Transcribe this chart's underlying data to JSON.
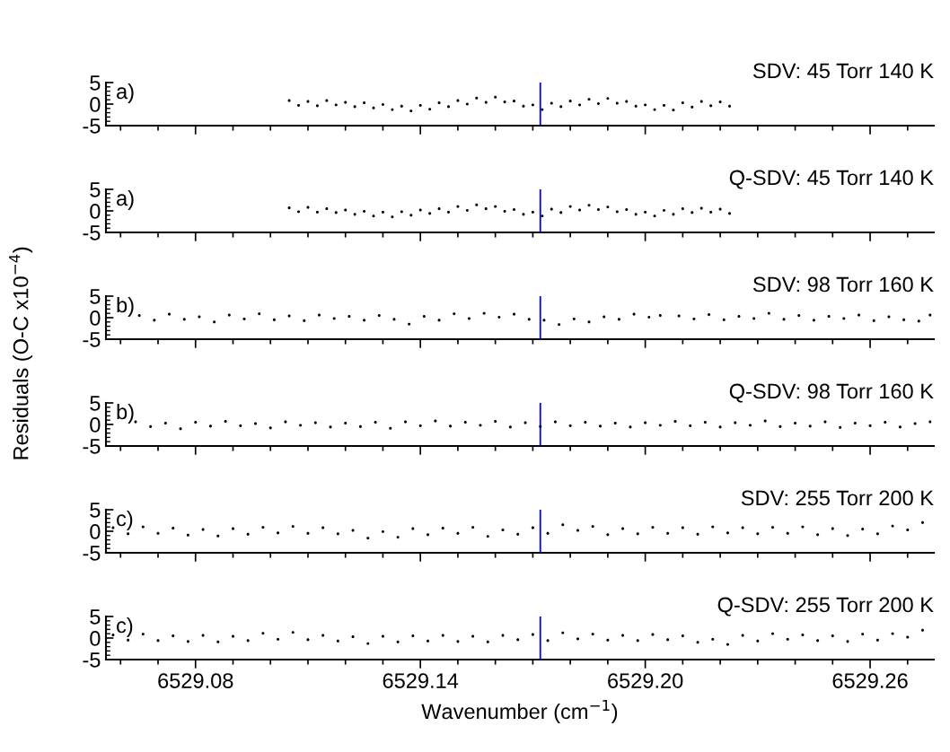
{
  "chart_data": [
    {
      "type": "scatter",
      "title": "SDV: 45 Torr 140 K",
      "ylabel": "Residuals (O-C x10$^{−4}$)",
      "annotations": [
        "a)"
      ],
      "tick_labels": "y",
      "xlim": [
        6529.0561,
        6529.277
      ],
      "xticks": [
        6529.08,
        6529.14,
        6529.2,
        6529.26
      ],
      "ylim": [
        -5,
        5
      ],
      "yticks": [
        -5,
        0,
        5
      ],
      "ref_lines": [
        {
          "axis": "x",
          "value": 6529.172,
          "color": "#0000ff"
        }
      ],
      "series": [
        {
          "color": "#000000",
          "x": [
            6529.105,
            6529.1075,
            6529.11,
            6529.1125,
            6529.115,
            6529.1175,
            6529.12,
            6529.1225,
            6529.125,
            6529.1275,
            6529.13,
            6529.1325,
            6529.135,
            6529.1375,
            6529.14,
            6529.1425,
            6529.145,
            6529.1475,
            6529.15,
            6529.1525,
            6529.155,
            6529.1575,
            6529.16,
            6529.1625,
            6529.165,
            6529.1675,
            6529.17,
            6529.1725,
            6529.175,
            6529.1775,
            6529.18,
            6529.1825,
            6529.185,
            6529.1875,
            6529.19,
            6529.1925,
            6529.195,
            6529.1975,
            6529.2,
            6529.2025,
            6529.205,
            6529.2075,
            6529.21,
            6529.2125,
            6529.215,
            6529.2175,
            6529.22,
            6529.2225
          ],
          "values": [
            0.8,
            -0.3,
            0.6,
            -0.4,
            0.8,
            -0.2,
            0.4,
            -0.6,
            0.3,
            -0.9,
            -0.1,
            -1.3,
            -0.5,
            -1.6,
            -0.3,
            -1.2,
            0.3,
            -0.6,
            0.8,
            0,
            1.4,
            0.4,
            1.6,
            0.5,
            0.7,
            -0.5,
            -0.2,
            -1.3,
            0.2,
            -0.6,
            0.7,
            -0.2,
            1.1,
            0.1,
            1.3,
            0.2,
            0.6,
            -0.5,
            -0.2,
            -1.3,
            -0.3,
            -1.4,
            0.3,
            -0.7,
            0.6,
            -0.4,
            0.5,
            -0.5
          ]
        }
      ]
    },
    {
      "type": "scatter",
      "title": "Q-SDV: 45 Torr 140 K",
      "annotations": [
        "a)"
      ],
      "tick_labels": "y",
      "xlim": [
        6529.0561,
        6529.277
      ],
      "xticks": [
        6529.08,
        6529.14,
        6529.2,
        6529.26
      ],
      "ylim": [
        -5,
        5
      ],
      "yticks": [
        -5,
        0,
        5
      ],
      "ref_lines": [
        {
          "axis": "x",
          "value": 6529.172,
          "color": "#0000ff"
        }
      ],
      "series": [
        {
          "color": "#000000",
          "x": [
            6529.105,
            6529.1075,
            6529.11,
            6529.1125,
            6529.115,
            6529.1175,
            6529.12,
            6529.1225,
            6529.125,
            6529.1275,
            6529.13,
            6529.1325,
            6529.135,
            6529.1375,
            6529.14,
            6529.1425,
            6529.145,
            6529.1475,
            6529.15,
            6529.1525,
            6529.155,
            6529.1575,
            6529.16,
            6529.1625,
            6529.165,
            6529.1675,
            6529.17,
            6529.1725,
            6529.175,
            6529.1775,
            6529.18,
            6529.1825,
            6529.185,
            6529.1875,
            6529.19,
            6529.1925,
            6529.195,
            6529.1975,
            6529.2,
            6529.2025,
            6529.205,
            6529.2075,
            6529.21,
            6529.2125,
            6529.215,
            6529.2175,
            6529.22,
            6529.2225
          ],
          "values": [
            0.7,
            -0.2,
            0.8,
            -0.3,
            0.5,
            -0.4,
            0.2,
            -0.8,
            -0.1,
            -1.2,
            -0.3,
            -1.4,
            -0.2,
            -1.0,
            0.2,
            -0.6,
            0.5,
            -0.3,
            1.0,
            0.1,
            1.4,
            0.5,
            1.0,
            -0.1,
            0.3,
            -0.8,
            -0.3,
            -1.2,
            0.4,
            -0.4,
            1.0,
            0.2,
            1.3,
            0.3,
            0.9,
            -0.2,
            0.3,
            -0.8,
            -0.3,
            -1.2,
            0.1,
            -0.8,
            0.5,
            -0.4,
            0.6,
            -0.3,
            0.4,
            -0.6
          ]
        }
      ]
    },
    {
      "type": "scatter",
      "title": "SDV: 98 Torr 160 K",
      "annotations": [
        "b)"
      ],
      "tick_labels": "y",
      "xlim": [
        6529.0561,
        6529.277
      ],
      "xticks": [
        6529.08,
        6529.14,
        6529.2,
        6529.26
      ],
      "ylim": [
        -5,
        5
      ],
      "yticks": [
        -5,
        0,
        5
      ],
      "ref_lines": [
        {
          "axis": "x",
          "value": 6529.172,
          "color": "#0000ff"
        }
      ],
      "series": [
        {
          "color": "#000000",
          "x": [
            6529.065,
            6529.069,
            6529.073,
            6529.077,
            6529.081,
            6529.085,
            6529.089,
            6529.093,
            6529.097,
            6529.101,
            6529.105,
            6529.109,
            6529.113,
            6529.117,
            6529.121,
            6529.125,
            6529.129,
            6529.133,
            6529.137,
            6529.141,
            6529.145,
            6529.149,
            6529.153,
            6529.157,
            6529.161,
            6529.165,
            6529.169,
            6529.173,
            6529.177,
            6529.181,
            6529.185,
            6529.189,
            6529.193,
            6529.197,
            6529.201,
            6529.204,
            6529.209,
            6529.213,
            6529.217,
            6529.221,
            6529.225,
            6529.229,
            6529.233,
            6529.237,
            6529.241,
            6529.245,
            6529.249,
            6529.253,
            6529.257,
            6529.261,
            6529.265,
            6529.269,
            6529.273,
            6529.276
          ],
          "values": [
            0.5,
            -0.6,
            0.8,
            -0.4,
            0.2,
            -1.0,
            0.6,
            -0.3,
            0.9,
            -0.5,
            0.4,
            -0.7,
            0.6,
            -0.2,
            0.3,
            -0.6,
            0.5,
            -0.4,
            -1.5,
            0.3,
            -0.6,
            0.9,
            -0.2,
            1.0,
            0.1,
            0.8,
            -0.4,
            -0.6,
            -1.6,
            -0.3,
            -1.0,
            0.2,
            -0.4,
            0.8,
            0.1,
            0.5,
            0.4,
            -0.3,
            0.7,
            -0.5,
            0.3,
            -0.2,
            1.0,
            -0.4,
            0.5,
            -0.6,
            0.3,
            -0.2,
            0.6,
            -0.7,
            0.2,
            -0.5,
            -0.8,
            0.6
          ]
        }
      ]
    },
    {
      "type": "scatter",
      "title": "Q-SDV: 98 Torr 160 K",
      "annotations": [
        "b)"
      ],
      "tick_labels": "y",
      "xlim": [
        6529.0561,
        6529.277
      ],
      "xticks": [
        6529.08,
        6529.14,
        6529.2,
        6529.26
      ],
      "ylim": [
        -5,
        5
      ],
      "yticks": [
        -5,
        0,
        5
      ],
      "ref_lines": [
        {
          "axis": "x",
          "value": 6529.172,
          "color": "#0000ff"
        }
      ],
      "series": [
        {
          "color": "#000000",
          "x": [
            6529.064,
            6529.068,
            6529.072,
            6529.076,
            6529.08,
            6529.084,
            6529.088,
            6529.092,
            6529.096,
            6529.1,
            6529.104,
            6529.108,
            6529.112,
            6529.116,
            6529.12,
            6529.124,
            6529.128,
            6529.132,
            6529.136,
            6529.14,
            6529.144,
            6529.148,
            6529.152,
            6529.156,
            6529.16,
            6529.164,
            6529.168,
            6529.172,
            6529.176,
            6529.18,
            6529.184,
            6529.188,
            6529.192,
            6529.196,
            6529.2,
            6529.204,
            6529.208,
            6529.212,
            6529.216,
            6529.22,
            6529.224,
            6529.228,
            6529.232,
            6529.236,
            6529.24,
            6529.244,
            6529.248,
            6529.252,
            6529.256,
            6529.26,
            6529.264,
            6529.268,
            6529.272,
            6529.276
          ],
          "values": [
            0.6,
            -0.5,
            0.3,
            -1.0,
            0.5,
            -0.4,
            0.7,
            -0.3,
            0.2,
            -0.8,
            0.6,
            -0.2,
            0.4,
            -0.6,
            0.3,
            -0.5,
            0.5,
            -0.9,
            0.6,
            -0.3,
            0.8,
            -0.4,
            0.5,
            -0.2,
            0.7,
            -0.6,
            0.4,
            -0.5,
            0.6,
            -0.3,
            0.5,
            -0.4,
            0.3,
            -0.6,
            0.4,
            -0.2,
            0.7,
            -0.3,
            0.5,
            -0.6,
            0.4,
            -0.2,
            0.8,
            -0.5,
            0.3,
            -0.4,
            0.6,
            -0.7,
            0.3,
            -0.3,
            0.5,
            -0.6,
            0.2,
            0.6
          ]
        }
      ]
    },
    {
      "type": "scatter",
      "title": "SDV: 255 Torr 200 K",
      "annotations": [
        "c)"
      ],
      "tick_labels": "y",
      "xlim": [
        6529.0561,
        6529.277
      ],
      "xticks": [
        6529.08,
        6529.14,
        6529.2,
        6529.26
      ],
      "ylim": [
        -5,
        5
      ],
      "yticks": [
        -5,
        0,
        5
      ],
      "ref_lines": [
        {
          "axis": "x",
          "value": 6529.172,
          "color": "#0000ff"
        }
      ],
      "series": [
        {
          "color": "#000000",
          "x": [
            6529.058,
            6529.062,
            6529.066,
            6529.07,
            6529.074,
            6529.078,
            6529.082,
            6529.086,
            6529.09,
            6529.094,
            6529.098,
            6529.102,
            6529.106,
            6529.11,
            6529.114,
            6529.118,
            6529.122,
            6529.126,
            6529.13,
            6529.134,
            6529.138,
            6529.142,
            6529.146,
            6529.15,
            6529.154,
            6529.158,
            6529.162,
            6529.166,
            6529.17,
            6529.174,
            6529.178,
            6529.182,
            6529.186,
            6529.19,
            6529.194,
            6529.198,
            6529.202,
            6529.206,
            6529.21,
            6529.214,
            6529.218,
            6529.222,
            6529.226,
            6529.23,
            6529.234,
            6529.238,
            6529.242,
            6529.246,
            6529.25,
            6529.254,
            6529.258,
            6529.262,
            6529.266,
            6529.27,
            6529.274
          ],
          "values": [
            0.8,
            -0.6,
            1.0,
            -0.5,
            0.7,
            -0.9,
            0.4,
            -1.1,
            0.6,
            -0.7,
            0.9,
            -0.4,
            1.1,
            -0.5,
            0.8,
            -0.6,
            0.2,
            -1.6,
            -0.1,
            -1.4,
            0.6,
            -0.8,
            0.7,
            -0.5,
            0.9,
            -1.2,
            0.3,
            -0.7,
            0.8,
            -0.5,
            1.5,
            0.2,
            1.1,
            -0.8,
            0.6,
            -0.6,
            0.9,
            -0.5,
            0.8,
            -0.7,
            1.0,
            -0.4,
            0.8,
            -0.6,
            0.9,
            -0.5,
            1.0,
            -0.8,
            0.6,
            -1.0,
            0.5,
            -0.6,
            1.2,
            0.3,
            2.0
          ]
        }
      ]
    },
    {
      "type": "scatter",
      "title": "Q-SDV: 255 Torr 200 K",
      "xlabel": "Wavenumber (cm$^{−1}$)",
      "annotations": [
        "c)"
      ],
      "xlim": [
        6529.0561,
        6529.277
      ],
      "xticks": [
        {
          "value": 6529.08,
          "label": "6529.08"
        },
        {
          "value": 6529.14,
          "label": "6529.14"
        },
        {
          "value": 6529.2,
          "label": "6529.20"
        },
        {
          "value": 6529.26,
          "label": "6529.26"
        }
      ],
      "ylim": [
        -5,
        5
      ],
      "yticks": [
        -5,
        0,
        5
      ],
      "ref_lines": [
        {
          "axis": "x",
          "value": 6529.172,
          "color": "#0000ff"
        }
      ],
      "series": [
        {
          "color": "#000000",
          "x": [
            6529.058,
            6529.062,
            6529.066,
            6529.07,
            6529.074,
            6529.078,
            6529.082,
            6529.086,
            6529.09,
            6529.094,
            6529.098,
            6529.102,
            6529.106,
            6529.11,
            6529.114,
            6529.118,
            6529.122,
            6529.126,
            6529.13,
            6529.134,
            6529.138,
            6529.142,
            6529.146,
            6529.15,
            6529.154,
            6529.158,
            6529.162,
            6529.166,
            6529.17,
            6529.174,
            6529.178,
            6529.182,
            6529.186,
            6529.19,
            6529.194,
            6529.198,
            6529.202,
            6529.206,
            6529.21,
            6529.214,
            6529.218,
            6529.222,
            6529.226,
            6529.23,
            6529.234,
            6529.238,
            6529.242,
            6529.246,
            6529.25,
            6529.254,
            6529.258,
            6529.262,
            6529.266,
            6529.27,
            6529.274
          ],
          "values": [
            0.7,
            -0.5,
            0.9,
            -0.6,
            0.5,
            -0.8,
            0.6,
            -0.9,
            0.4,
            -0.6,
            1.1,
            -0.3,
            1.3,
            -0.4,
            0.6,
            -0.7,
            0.3,
            -1.3,
            0.4,
            -0.9,
            0.5,
            -0.7,
            0.6,
            -0.8,
            0.4,
            -0.9,
            0.6,
            -0.4,
            0.8,
            -0.6,
            1.2,
            -0.2,
            0.9,
            -0.5,
            0.6,
            -0.6,
            0.8,
            -0.4,
            0.5,
            -1.0,
            -0.3,
            -1.5,
            0.6,
            -0.7,
            1.0,
            -0.3,
            0.7,
            -0.6,
            0.5,
            -0.8,
            0.9,
            -0.5,
            1.0,
            0.2,
            1.8
          ]
        }
      ]
    }
  ]
}
